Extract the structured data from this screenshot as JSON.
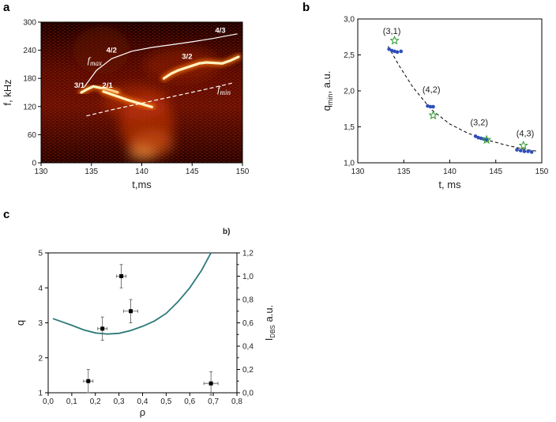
{
  "panels": {
    "a": "a",
    "b": "b",
    "c": "c",
    "c_inset": "b)"
  },
  "chart_data": [
    {
      "type": "heatmap",
      "panel": "a",
      "xlabel": "t,ms",
      "ylabel": "f, kHz",
      "xlim": [
        130,
        150
      ],
      "ylim": [
        0,
        300
      ],
      "xticks": [
        "130",
        "135",
        "140",
        "145",
        "150"
      ],
      "yticks": [
        "0",
        "60",
        "120",
        "180",
        "240",
        "300"
      ],
      "colormap": [
        "#000000",
        "#3a0000",
        "#8a1200",
        "#d23a0a",
        "#ff8a20",
        "#ffe9a0",
        "#ffffff"
      ],
      "mode_labels": [
        {
          "text": "3/1",
          "t": 133.8,
          "f": 160
        },
        {
          "text": "2/1",
          "t": 136.6,
          "f": 160
        },
        {
          "text": "4/2",
          "t": 137.0,
          "f": 235
        },
        {
          "text": "3/2",
          "t": 144.5,
          "f": 222
        },
        {
          "text": "4/3",
          "t": 147.8,
          "f": 277
        }
      ],
      "curve_labels": {
        "fmax": "f",
        "fmax_sub": "max",
        "fmin": "f",
        "fmin_sub": "min"
      },
      "fmax_curve": {
        "t": [
          134.3,
          135.5,
          137,
          139,
          141,
          143,
          145,
          147,
          149.5
        ],
        "f": [
          162,
          197,
          222,
          238,
          246,
          252,
          258,
          265,
          275
        ]
      },
      "fmin_curve": {
        "t": [
          134.5,
          137,
          140,
          143,
          146,
          149
        ],
        "f": [
          100,
          113,
          127,
          141,
          155,
          170
        ]
      },
      "bright_traces": [
        {
          "t": [
            134.0,
            134.6,
            135.2,
            135.8,
            136.4,
            137.0,
            137.6
          ],
          "f": [
            150,
            157,
            163,
            160,
            158,
            154,
            150
          ]
        },
        {
          "t": [
            136.2,
            137.0,
            137.8,
            138.6,
            139.4,
            140.2,
            141.0
          ],
          "f": [
            152,
            146,
            140,
            134,
            129,
            124,
            119
          ]
        },
        {
          "t": [
            142.2,
            142.9,
            143.6,
            144.3,
            145.0,
            145.7,
            146.4,
            147.2,
            148.0,
            148.8,
            149.6
          ],
          "f": [
            180,
            190,
            197,
            202,
            207,
            212,
            214,
            213,
            212,
            218,
            226
          ]
        }
      ]
    },
    {
      "type": "scatter",
      "panel": "b",
      "xlabel": "t, ms",
      "ylabel_main": "q",
      "ylabel_sub": "min",
      "ylabel_rest": ", a.u.",
      "xlim": [
        130,
        150
      ],
      "ylim": [
        1.0,
        3.0
      ],
      "xticks": [
        "130",
        "135",
        "140",
        "145",
        "150"
      ],
      "yticks": [
        "1,0",
        "1,5",
        "2,0",
        "2,5",
        "3,0"
      ],
      "series": [
        {
          "type": "dots",
          "color": "#2f4fb8",
          "x": [
            133.4,
            133.7,
            134.0,
            134.3,
            134.7,
            137.6,
            137.9,
            138.2,
            142.8,
            143.1,
            143.4,
            143.7,
            144.0,
            147.3,
            147.7,
            148.1,
            148.5,
            148.9
          ],
          "y": [
            2.58,
            2.56,
            2.55,
            2.54,
            2.55,
            1.79,
            1.78,
            1.78,
            1.37,
            1.35,
            1.34,
            1.33,
            1.32,
            1.18,
            1.17,
            1.16,
            1.16,
            1.15
          ]
        },
        {
          "type": "star",
          "color": "#3aa03a",
          "x": [
            134.0,
            138.2,
            144.0,
            148.0
          ],
          "y": [
            2.7,
            1.66,
            1.32,
            1.24
          ]
        },
        {
          "type": "fit",
          "x": [
            133.3,
            134.5,
            136,
            138,
            140,
            142,
            144,
            146,
            148,
            149.5
          ],
          "y": [
            2.62,
            2.35,
            2.05,
            1.74,
            1.54,
            1.41,
            1.32,
            1.25,
            1.19,
            1.16
          ]
        }
      ],
      "labels": [
        {
          "text": "(3,1)",
          "x": 133.7,
          "y": 2.79
        },
        {
          "text": "(4,2)",
          "x": 138.0,
          "y": 1.98
        },
        {
          "text": "(3,2)",
          "x": 143.2,
          "y": 1.52
        },
        {
          "text": "(4,3)",
          "x": 148.2,
          "y": 1.37
        }
      ]
    },
    {
      "type": "line",
      "panel": "c",
      "xlabel": "ρ",
      "ylabel_left": "q",
      "ylabel_right_main": "I",
      "ylabel_right_sub": "DBS",
      "ylabel_right_rest": " a.u.",
      "xlim": [
        0,
        0.8
      ],
      "ylim_left": [
        1,
        5
      ],
      "ylim_right": [
        0,
        1.2
      ],
      "xticks": [
        "0,0",
        "0,1",
        "0,2",
        "0,3",
        "0,4",
        "0,5",
        "0,6",
        "0,7",
        "0,8"
      ],
      "yticks_left": [
        "1",
        "2",
        "3",
        "4",
        "5"
      ],
      "yticks_right": [
        "0,0",
        "0,2",
        "0,4",
        "0,6",
        "0,8",
        "1,0",
        "1,2"
      ],
      "yticks_right_minor": [
        "0,1",
        "0,3",
        "0,5",
        "0,7",
        "0,9",
        "1,1"
      ],
      "q_profile": {
        "color": "#2d7a78",
        "x": [
          0.02,
          0.05,
          0.1,
          0.15,
          0.2,
          0.25,
          0.3,
          0.35,
          0.4,
          0.45,
          0.5,
          0.55,
          0.6,
          0.65,
          0.69
        ],
        "y": [
          3.12,
          3.05,
          2.93,
          2.8,
          2.71,
          2.68,
          2.7,
          2.78,
          2.9,
          3.05,
          3.27,
          3.6,
          4.0,
          4.5,
          5.0
        ]
      },
      "points": {
        "x": [
          0.17,
          0.23,
          0.31,
          0.35,
          0.69
        ],
        "y": [
          0.1,
          0.55,
          1.0,
          0.7,
          0.08
        ],
        "xerr": [
          0.02,
          0.02,
          0.02,
          0.03,
          0.03
        ],
        "yerr": [
          0.1,
          0.1,
          0.1,
          0.1,
          0.1
        ]
      }
    }
  ]
}
